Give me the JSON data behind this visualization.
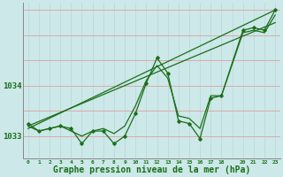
{
  "bg_color": "#cce8e8",
  "line_color": "#1a6e1a",
  "grid_h_color": "#ddaaaa",
  "grid_v_color": "#b8d8d8",
  "xlabel": "Graphe pression niveau de la mer (hPa)",
  "xlabel_fontsize": 7,
  "xlim": [
    -0.5,
    23.5
  ],
  "ylim": [
    1032.55,
    1035.65
  ],
  "hours": [
    0,
    1,
    2,
    3,
    4,
    5,
    6,
    7,
    8,
    9,
    10,
    11,
    12,
    13,
    14,
    15,
    16,
    17,
    18,
    20,
    21,
    22,
    23
  ],
  "pressure_main": [
    1033.25,
    1033.1,
    1033.15,
    1033.2,
    1033.15,
    1032.85,
    1033.1,
    1033.1,
    1032.85,
    1033.0,
    1033.45,
    1034.05,
    1034.55,
    1034.25,
    1033.3,
    1033.25,
    1032.95,
    1033.75,
    1033.8,
    1035.1,
    1035.15,
    1035.1,
    1035.5
  ],
  "pressure_smooth": [
    1033.2,
    1033.1,
    1033.15,
    1033.2,
    1033.1,
    1033.0,
    1033.1,
    1033.15,
    1033.05,
    1033.2,
    1033.6,
    1034.1,
    1034.4,
    1034.15,
    1033.4,
    1033.35,
    1033.15,
    1033.8,
    1033.8,
    1035.05,
    1035.1,
    1035.05,
    1035.4
  ],
  "trend_x": [
    0,
    23
  ],
  "trend_y": [
    1033.15,
    1035.5
  ],
  "trend2_x": [
    0,
    23
  ],
  "trend2_y": [
    1033.2,
    1035.25
  ],
  "yticks": [
    1033,
    1034
  ],
  "xticks": [
    0,
    1,
    2,
    3,
    4,
    5,
    6,
    7,
    8,
    9,
    10,
    11,
    12,
    13,
    14,
    15,
    16,
    17,
    18,
    20,
    21,
    22,
    23
  ],
  "xtick_labels": [
    "0",
    "1",
    "2",
    "3",
    "4",
    "5",
    "6",
    "7",
    "8",
    "9",
    "10",
    "11",
    "12",
    "13",
    "14",
    "15",
    "16",
    "17",
    "18",
    "20",
    "21",
    "22",
    "23"
  ],
  "hgrid_vals": [
    1033.0,
    1033.5,
    1034.0,
    1034.5,
    1035.0,
    1035.5
  ],
  "vgrid_vals": [
    0,
    1,
    2,
    3,
    4,
    5,
    6,
    7,
    8,
    9,
    10,
    11,
    12,
    13,
    14,
    15,
    16,
    17,
    18,
    19,
    20,
    21,
    22,
    23
  ]
}
